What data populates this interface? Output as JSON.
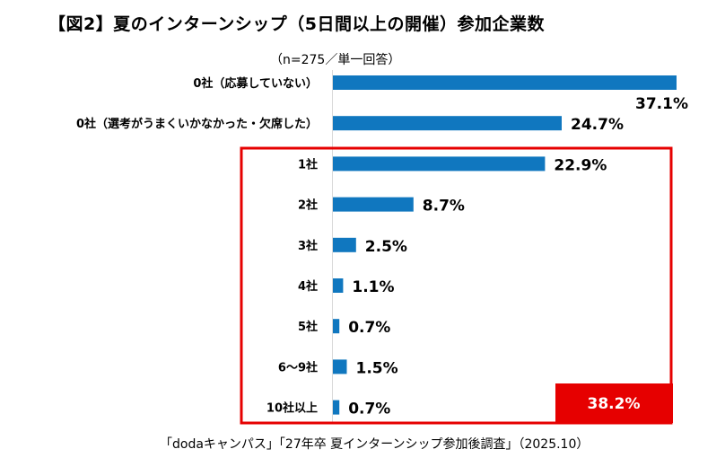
{
  "title": "【図2】夏のインターンシップ（5日間以上の開催）参加企業数",
  "subtitle": "（n=275／単一回答）",
  "footer": "「dodaキャンパス」「27年卒 夏インターンシップ参加後調査」（2025.10）",
  "colors": {
    "bar": "#1077bf",
    "highlight": "#e60000",
    "axis": "#d9d9d9"
  },
  "chart_data": {
    "type": "bar",
    "orientation": "horizontal",
    "unit": "%",
    "categories": [
      "0社（応募していない）",
      "0社（選考がうまくいかなかった・欠席した）",
      "1社",
      "2社",
      "3社",
      "4社",
      "5社",
      "6〜9社",
      "10社以上"
    ],
    "values": [
      37.1,
      24.7,
      22.9,
      8.7,
      2.5,
      1.1,
      0.7,
      1.5,
      0.7
    ],
    "value_labels": [
      "37.1%",
      "24.7%",
      "22.9%",
      "8.7%",
      "2.5%",
      "1.1%",
      "0.7%",
      "1.5%",
      "0.7%"
    ],
    "xlim": [
      0,
      37.1
    ],
    "grid": false,
    "legend": "none",
    "highlight": {
      "categories": [
        "1社",
        "2社",
        "3社",
        "4社",
        "5社",
        "6〜9社",
        "10社以上"
      ],
      "total_label": "38.2%"
    }
  }
}
